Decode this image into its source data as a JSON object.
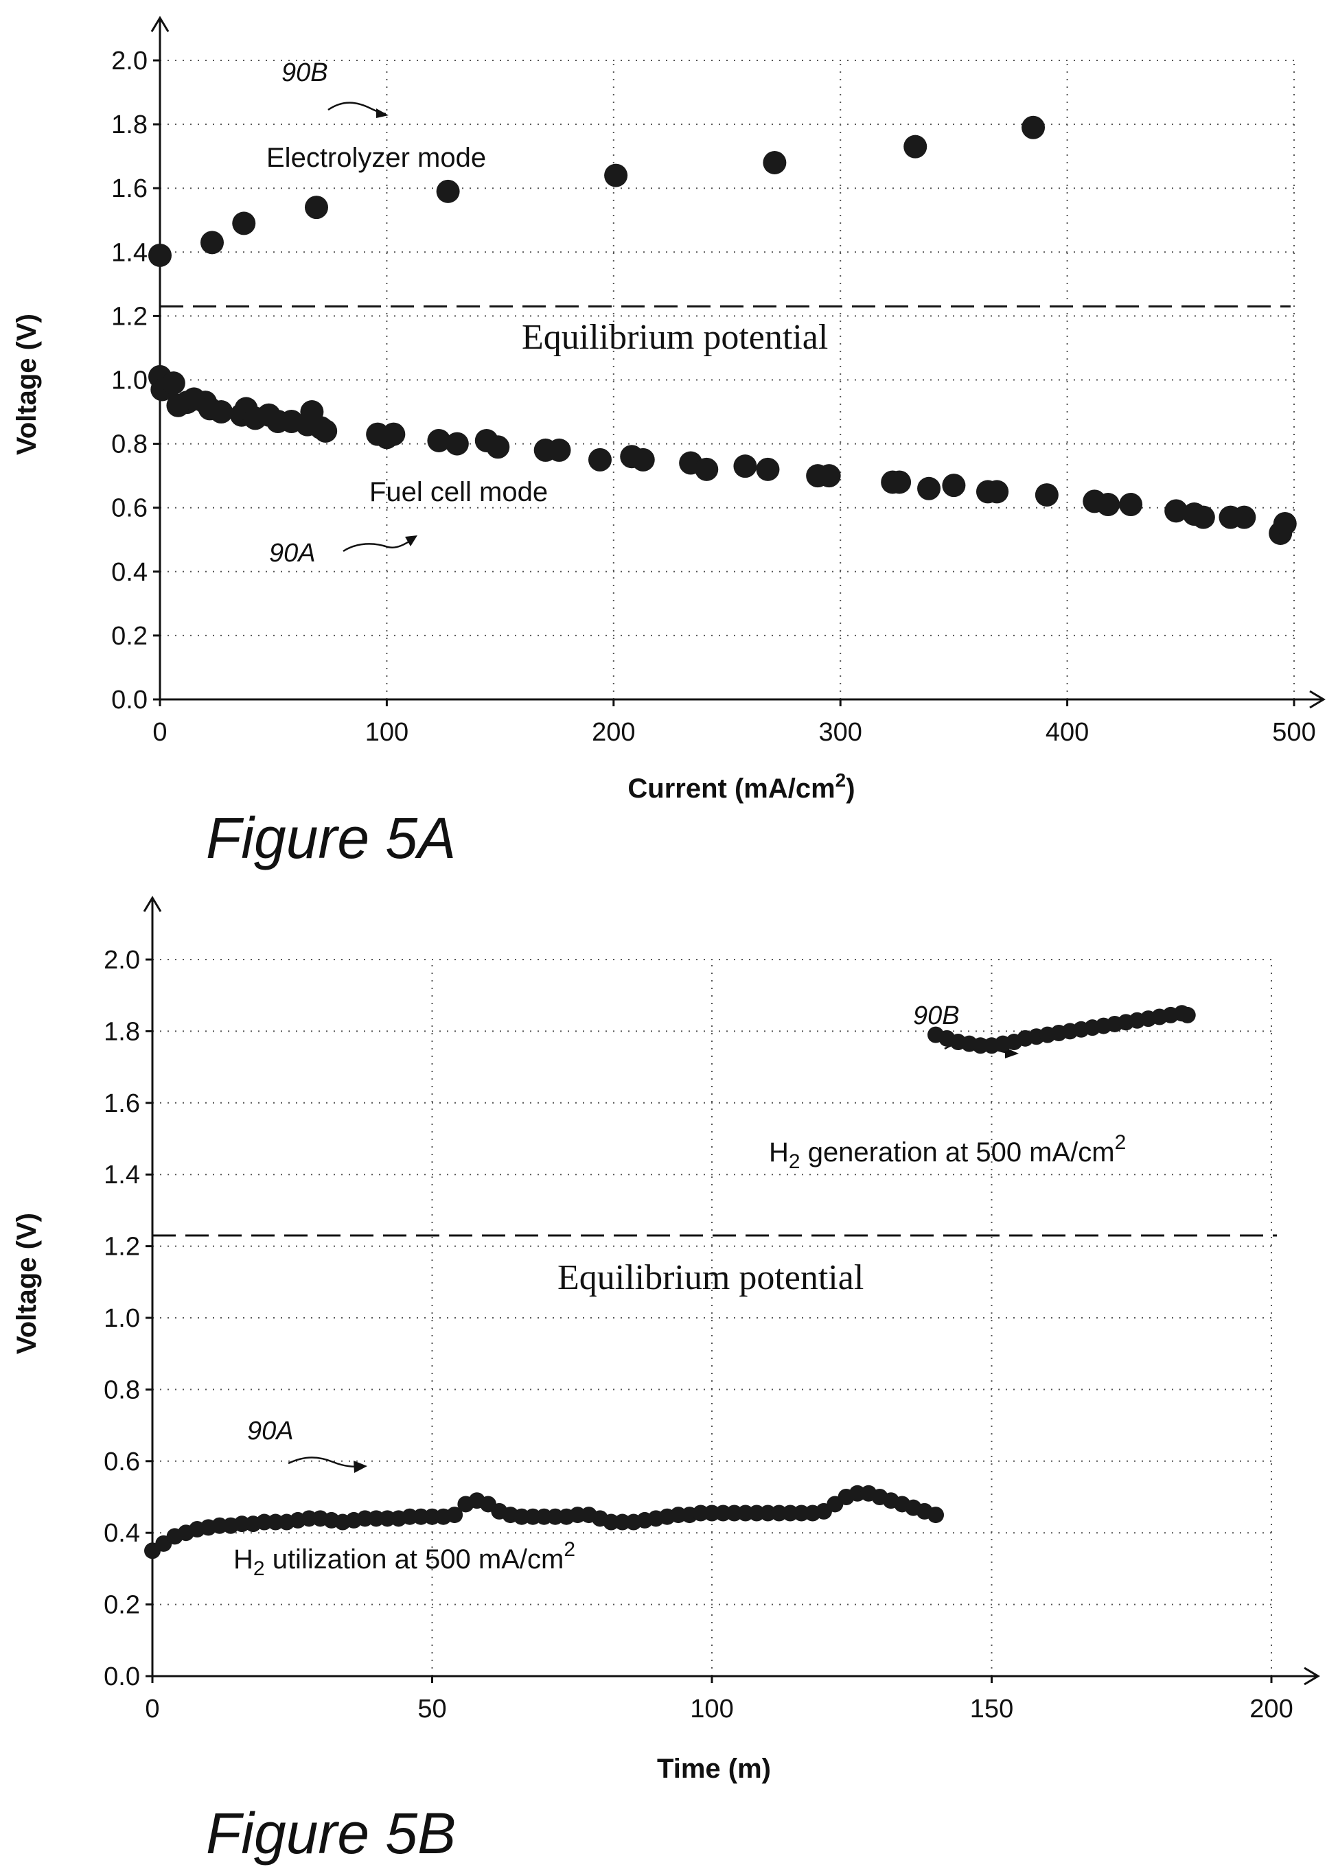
{
  "chart_data": [
    {
      "type": "scatter",
      "caption": "Figure 5A",
      "xlabel": "Current (mA/cm",
      "xlabel_sup": "2",
      "xlabel_tail": ")",
      "ylabel": "Voltage (V)",
      "xlim": [
        0,
        500
      ],
      "ylim": [
        0,
        2.0
      ],
      "xticks": [
        "0",
        "100",
        "200",
        "300",
        "400",
        "500"
      ],
      "yticks": [
        "0.0",
        "0.2",
        "0.4",
        "0.6",
        "0.8",
        "1.0",
        "1.2",
        "1.4",
        "1.6",
        "1.8",
        "2.0"
      ],
      "grid": true,
      "equilibrium": {
        "y": 1.23,
        "label": "Equilibrium potential"
      },
      "annotations": {
        "upper_label": "Electrolyzer mode",
        "upper_ref": "90B",
        "lower_label": "Fuel cell mode",
        "lower_ref": "90A"
      },
      "series": [
        {
          "points": [
            [
              0,
              1.39
            ],
            [
              23,
              1.43
            ],
            [
              37,
              1.49
            ],
            [
              69,
              1.54
            ],
            [
              127,
              1.59
            ],
            [
              201,
              1.64
            ],
            [
              271,
              1.68
            ],
            [
              333,
              1.73
            ],
            [
              385,
              1.79
            ]
          ]
        },
        {
          "points": [
            [
              0,
              1.01
            ],
            [
              1,
              0.97
            ],
            [
              3,
              0.98
            ],
            [
              6,
              0.99
            ],
            [
              8,
              0.92
            ],
            [
              12,
              0.93
            ],
            [
              15,
              0.94
            ],
            [
              20,
              0.93
            ],
            [
              22,
              0.91
            ],
            [
              27,
              0.9
            ],
            [
              36,
              0.89
            ],
            [
              38,
              0.91
            ],
            [
              42,
              0.88
            ],
            [
              48,
              0.89
            ],
            [
              52,
              0.87
            ],
            [
              58,
              0.87
            ],
            [
              65,
              0.86
            ],
            [
              67,
              0.9
            ],
            [
              71,
              0.85
            ],
            [
              73,
              0.84
            ],
            [
              96,
              0.83
            ],
            [
              100,
              0.82
            ],
            [
              103,
              0.83
            ],
            [
              123,
              0.81
            ],
            [
              131,
              0.8
            ],
            [
              144,
              0.81
            ],
            [
              149,
              0.79
            ],
            [
              170,
              0.78
            ],
            [
              176,
              0.78
            ],
            [
              194,
              0.75
            ],
            [
              208,
              0.76
            ],
            [
              213,
              0.75
            ],
            [
              234,
              0.74
            ],
            [
              241,
              0.72
            ],
            [
              258,
              0.73
            ],
            [
              268,
              0.72
            ],
            [
              290,
              0.7
            ],
            [
              295,
              0.7
            ],
            [
              323,
              0.68
            ],
            [
              326,
              0.68
            ],
            [
              339,
              0.66
            ],
            [
              350,
              0.67
            ],
            [
              365,
              0.65
            ],
            [
              369,
              0.65
            ],
            [
              391,
              0.64
            ],
            [
              412,
              0.62
            ],
            [
              418,
              0.61
            ],
            [
              428,
              0.61
            ],
            [
              448,
              0.59
            ],
            [
              456,
              0.58
            ],
            [
              460,
              0.57
            ],
            [
              472,
              0.57
            ],
            [
              478,
              0.57
            ],
            [
              494,
              0.52
            ],
            [
              496,
              0.55
            ]
          ]
        }
      ]
    },
    {
      "type": "scatter",
      "caption": "Figure 5B",
      "xlabel": "Time (m)",
      "ylabel": "Voltage (V)",
      "xlim": [
        0,
        200
      ],
      "ylim": [
        0,
        2.0
      ],
      "xticks": [
        "0",
        "50",
        "100",
        "150",
        "200"
      ],
      "yticks": [
        "0.0",
        "0.2",
        "0.4",
        "0.6",
        "0.8",
        "1.0",
        "1.2",
        "1.4",
        "1.6",
        "1.8",
        "2.0"
      ],
      "grid": true,
      "equilibrium": {
        "y": 1.23,
        "label": "Equilibrium potential"
      },
      "annotations": {
        "upper_ref": "90B",
        "upper_label_pre": "H",
        "upper_label_sub": "2",
        "upper_label_mid": " generation at 500 mA/cm",
        "upper_label_sup": "2",
        "lower_ref": "90A",
        "lower_label_pre": "H",
        "lower_label_sub": "2",
        "lower_label_mid": " utilization at 500 mA/cm",
        "lower_label_sup": "2"
      },
      "series": [
        {
          "points": [
            [
              140,
              1.79
            ],
            [
              142,
              1.78
            ],
            [
              144,
              1.77
            ],
            [
              146,
              1.765
            ],
            [
              148,
              1.76
            ],
            [
              150,
              1.76
            ],
            [
              152,
              1.765
            ],
            [
              154,
              1.77
            ],
            [
              156,
              1.78
            ],
            [
              158,
              1.785
            ],
            [
              160,
              1.79
            ],
            [
              162,
              1.795
            ],
            [
              164,
              1.8
            ],
            [
              166,
              1.805
            ],
            [
              168,
              1.81
            ],
            [
              170,
              1.815
            ],
            [
              172,
              1.82
            ],
            [
              174,
              1.825
            ],
            [
              176,
              1.83
            ],
            [
              178,
              1.835
            ],
            [
              180,
              1.84
            ],
            [
              182,
              1.845
            ],
            [
              184,
              1.85
            ],
            [
              185,
              1.845
            ]
          ]
        },
        {
          "points": [
            [
              0,
              0.35
            ],
            [
              2,
              0.37
            ],
            [
              4,
              0.39
            ],
            [
              6,
              0.4
            ],
            [
              8,
              0.41
            ],
            [
              10,
              0.415
            ],
            [
              12,
              0.42
            ],
            [
              14,
              0.42
            ],
            [
              16,
              0.425
            ],
            [
              18,
              0.425
            ],
            [
              20,
              0.43
            ],
            [
              22,
              0.43
            ],
            [
              24,
              0.43
            ],
            [
              26,
              0.435
            ],
            [
              28,
              0.44
            ],
            [
              30,
              0.44
            ],
            [
              32,
              0.435
            ],
            [
              34,
              0.43
            ],
            [
              36,
              0.435
            ],
            [
              38,
              0.44
            ],
            [
              40,
              0.44
            ],
            [
              42,
              0.44
            ],
            [
              44,
              0.44
            ],
            [
              46,
              0.445
            ],
            [
              48,
              0.445
            ],
            [
              50,
              0.445
            ],
            [
              52,
              0.445
            ],
            [
              54,
              0.45
            ],
            [
              56,
              0.48
            ],
            [
              58,
              0.49
            ],
            [
              60,
              0.48
            ],
            [
              62,
              0.46
            ],
            [
              64,
              0.45
            ],
            [
              66,
              0.445
            ],
            [
              68,
              0.445
            ],
            [
              70,
              0.445
            ],
            [
              72,
              0.445
            ],
            [
              74,
              0.445
            ],
            [
              76,
              0.45
            ],
            [
              78,
              0.45
            ],
            [
              80,
              0.44
            ],
            [
              82,
              0.43
            ],
            [
              84,
              0.43
            ],
            [
              86,
              0.43
            ],
            [
              88,
              0.435
            ],
            [
              90,
              0.44
            ],
            [
              92,
              0.445
            ],
            [
              94,
              0.45
            ],
            [
              96,
              0.45
            ],
            [
              98,
              0.455
            ],
            [
              100,
              0.455
            ],
            [
              102,
              0.455
            ],
            [
              104,
              0.455
            ],
            [
              106,
              0.455
            ],
            [
              108,
              0.455
            ],
            [
              110,
              0.455
            ],
            [
              112,
              0.455
            ],
            [
              114,
              0.455
            ],
            [
              116,
              0.455
            ],
            [
              118,
              0.455
            ],
            [
              120,
              0.46
            ],
            [
              122,
              0.48
            ],
            [
              124,
              0.5
            ],
            [
              126,
              0.51
            ],
            [
              128,
              0.51
            ],
            [
              130,
              0.5
            ],
            [
              132,
              0.49
            ],
            [
              134,
              0.48
            ],
            [
              136,
              0.47
            ],
            [
              138,
              0.46
            ],
            [
              140,
              0.45
            ]
          ]
        }
      ]
    }
  ]
}
